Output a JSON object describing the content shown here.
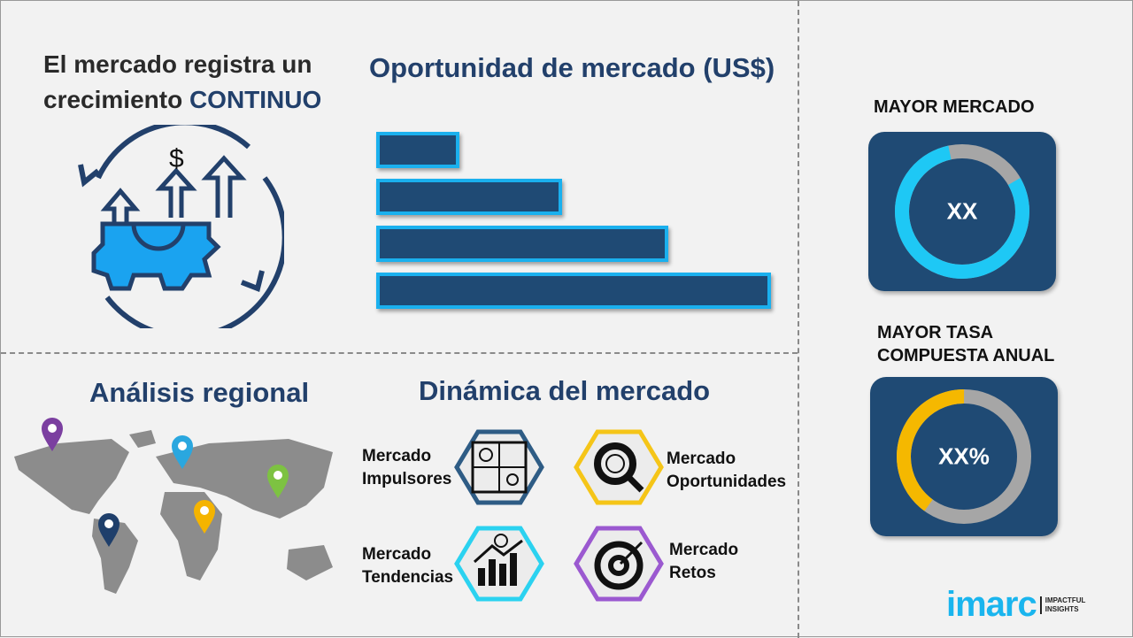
{
  "headline": {
    "line1": "El mercado registra un",
    "line2_prefix": "crecimiento",
    "line2_accent": "CONTINUO"
  },
  "opportunity": {
    "title": "Oportunidad de mercado (US$)",
    "bar_fractions": [
      0.21,
      0.47,
      0.74,
      1.0
    ],
    "bar_color": "#1f4a74",
    "bar_border": "#1ab0ee"
  },
  "regional": {
    "title": "Análisis regional",
    "pin_colors": [
      "#7b3fa0",
      "#2aa7df",
      "#7dc242",
      "#1f3f6b",
      "#f5b400"
    ]
  },
  "dynamics": {
    "title": "Dinámica del mercado",
    "items": [
      {
        "line1": "Mercado",
        "line2": "Impulsores",
        "color": "#2e5c85",
        "icon": "puzzle-icon"
      },
      {
        "line1": "Mercado",
        "line2": "Oportunidades",
        "color": "#f5c518",
        "icon": "magnifier-dollar-icon"
      },
      {
        "line1": "Mercado",
        "line2": "Tendencias",
        "color": "#2bd2f0",
        "icon": "growth-chart-icon"
      },
      {
        "line1": "Mercado",
        "line2": "Retos",
        "color": "#9b59d0",
        "icon": "target-icon"
      }
    ]
  },
  "largest_market": {
    "label": "MAYOR MERCADO",
    "value": "XX",
    "fill_fraction": 0.8,
    "fill_color": "#1ec8f5"
  },
  "highest_cagr": {
    "label_line1": "MAYOR TASA",
    "label_line2": "COMPUESTA ANUAL",
    "value": "XX%",
    "fill_fraction": 0.4,
    "fill_color": "#f5b800"
  },
  "logo": {
    "brand": "imarc",
    "tagline1": "IMPACTFUL",
    "tagline2": "INSIGHTS"
  }
}
